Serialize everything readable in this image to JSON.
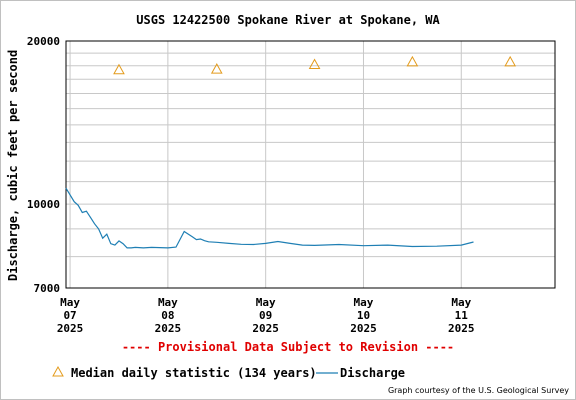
{
  "page": {
    "title": "USGS 12422500 Spokane River at Spokane, WA",
    "provisional_note": "---- Provisional Data Subject to Revision ----",
    "credit": "Graph courtesy of the U.S. Geological Survey"
  },
  "legend": {
    "median_label": "Median daily statistic (134 years)",
    "discharge_label": "Discharge"
  },
  "colors": {
    "median_marker": "#e39b1c",
    "discharge_line": "#1f7fb4",
    "grid": "#c8c8c8",
    "provisional": "#e00000"
  },
  "chart_data": {
    "type": "line",
    "title": "USGS 12422500 Spokane River at Spokane, WA",
    "ylabel": "Discharge, cubic feet per second",
    "xlabel": "",
    "yscale": "log",
    "ylim": [
      7000,
      20000
    ],
    "yticks": [
      7000,
      10000,
      20000
    ],
    "xlim": [
      "2025-05-06T23:00",
      "2025-05-11T23:00"
    ],
    "xticks": [
      {
        "date": "2025-05-07",
        "label": [
          "May",
          "07",
          "2025"
        ]
      },
      {
        "date": "2025-05-08",
        "label": [
          "May",
          "08",
          "2025"
        ]
      },
      {
        "date": "2025-05-09",
        "label": [
          "May",
          "09",
          "2025"
        ]
      },
      {
        "date": "2025-05-10",
        "label": [
          "May",
          "10",
          "2025"
        ]
      },
      {
        "date": "2025-05-11",
        "label": [
          "May",
          "11",
          "2025"
        ]
      }
    ],
    "grid": true,
    "series": [
      {
        "name": "Median daily statistic (134 years)",
        "marker": "triangle",
        "x": [
          "2025-05-07T12:00",
          "2025-05-08T12:00",
          "2025-05-09T12:00",
          "2025-05-10T12:00",
          "2025-05-11T12:00"
        ],
        "y": [
          17700,
          17750,
          18100,
          18300,
          18300
        ]
      },
      {
        "name": "Discharge",
        "marker": "line",
        "x": [
          "2025-05-06T23:00",
          "2025-05-07T00:00",
          "2025-05-07T01:00",
          "2025-05-07T02:00",
          "2025-05-07T03:00",
          "2025-05-07T04:00",
          "2025-05-07T05:00",
          "2025-05-07T06:00",
          "2025-05-07T07:00",
          "2025-05-07T08:00",
          "2025-05-07T09:00",
          "2025-05-07T10:00",
          "2025-05-07T11:00",
          "2025-05-07T12:00",
          "2025-05-07T13:00",
          "2025-05-07T14:00",
          "2025-05-07T15:00",
          "2025-05-07T16:00",
          "2025-05-07T17:00",
          "2025-05-07T18:00",
          "2025-05-07T20:00",
          "2025-05-07T22:00",
          "2025-05-08T00:00",
          "2025-05-08T02:00",
          "2025-05-08T04:00",
          "2025-05-08T06:00",
          "2025-05-08T07:00",
          "2025-05-08T08:00",
          "2025-05-08T09:00",
          "2025-05-08T10:00",
          "2025-05-08T12:00",
          "2025-05-08T15:00",
          "2025-05-08T18:00",
          "2025-05-08T21:00",
          "2025-05-09T00:00",
          "2025-05-09T03:00",
          "2025-05-09T06:00",
          "2025-05-09T09:00",
          "2025-05-09T12:00",
          "2025-05-09T18:00",
          "2025-05-10T00:00",
          "2025-05-10T06:00",
          "2025-05-10T12:00",
          "2025-05-10T18:00",
          "2025-05-11T00:00",
          "2025-05-11T03:00"
        ],
        "y": [
          10700,
          10400,
          10100,
          9950,
          9650,
          9700,
          9450,
          9200,
          9000,
          8650,
          8800,
          8450,
          8400,
          8550,
          8450,
          8300,
          8300,
          8320,
          8310,
          8300,
          8320,
          8310,
          8300,
          8330,
          8900,
          8700,
          8600,
          8620,
          8560,
          8520,
          8500,
          8460,
          8430,
          8420,
          8460,
          8530,
          8460,
          8400,
          8390,
          8420,
          8380,
          8400,
          8350,
          8360,
          8400,
          8510
        ]
      }
    ]
  }
}
